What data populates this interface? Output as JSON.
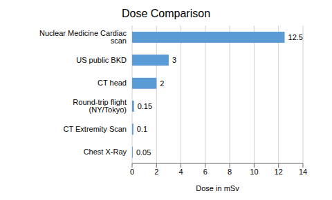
{
  "chart_data": {
    "type": "bar",
    "orientation": "horizontal",
    "title": "Dose Comparison",
    "xlabel": "Dose in mSv",
    "categories": [
      "Chest X-Ray",
      "CT Extremity Scan",
      "Round-trip flight (NY/Tokyo)",
      "CT head",
      "US public BKD",
      "Nuclear Medicine Cardiac scan"
    ],
    "values": [
      0.05,
      0.1,
      0.15,
      2,
      3,
      12.5
    ],
    "color": "#5b9bd5",
    "xlim": [
      0,
      14
    ],
    "xticks": [
      0,
      2,
      4,
      6,
      8,
      10,
      12,
      14
    ],
    "grid": true,
    "data_labels": true
  }
}
